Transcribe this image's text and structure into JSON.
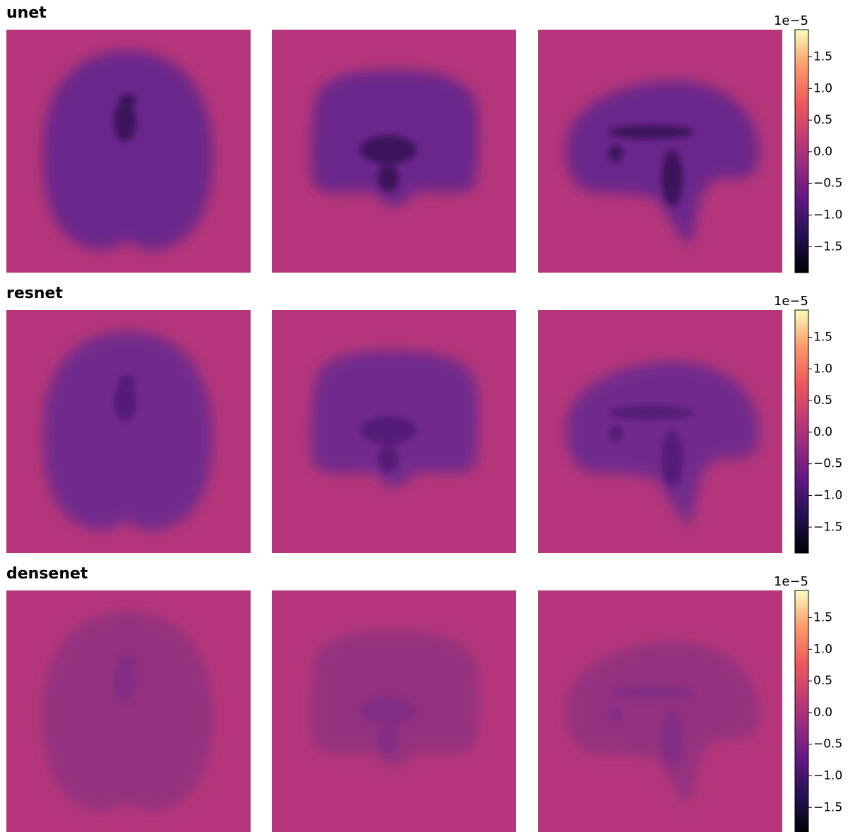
{
  "chart_data": [
    {
      "type": "heatmap",
      "title": "unet",
      "colormap": "magma",
      "colorbar": {
        "offset_label": "1e−5",
        "lim": [
          -1.91,
          1.93
        ],
        "ticks": [
          {
            "value": -1.5,
            "label": "−1.5"
          },
          {
            "value": -1.0,
            "label": "−1.0"
          },
          {
            "value": -0.5,
            "label": "−0.5"
          },
          {
            "value": 0,
            "label": "0.0"
          },
          0.5,
          {
            "value": 1.0,
            "label": "1.0"
          },
          1.5
        ]
      }
    },
    {
      "type": "heatmap",
      "title": "resnet",
      "colormap": "magma",
      "colorbar": {
        "offset_label": "1e−5",
        "lim": [
          -1.91,
          1.93
        ],
        "ticks": [
          {
            "value": -1.5,
            "label": "−1.5"
          },
          {
            "value": -1.0,
            "label": "−1.0"
          },
          {
            "value": -0.5,
            "label": "−0.5"
          },
          {
            "value": 0,
            "label": "0.0"
          },
          0.5,
          {
            "value": 1.0,
            "label": "1.0"
          },
          1.5
        ]
      }
    },
    {
      "type": "heatmap",
      "title": "densenet",
      "colormap": "magma",
      "colorbar": {
        "offset_label": "1e−5",
        "lim": [
          -1.91,
          1.93
        ],
        "ticks": [
          {
            "value": -1.5,
            "label": "−1.5"
          },
          {
            "value": -1.0,
            "label": "−1.0"
          },
          {
            "value": -0.5,
            "label": "−0.5"
          },
          {
            "value": 0,
            "label": "0.0"
          },
          0.5,
          {
            "value": 1.0,
            "label": "1.0"
          },
          1.5
        ]
      }
    }
  ]
}
